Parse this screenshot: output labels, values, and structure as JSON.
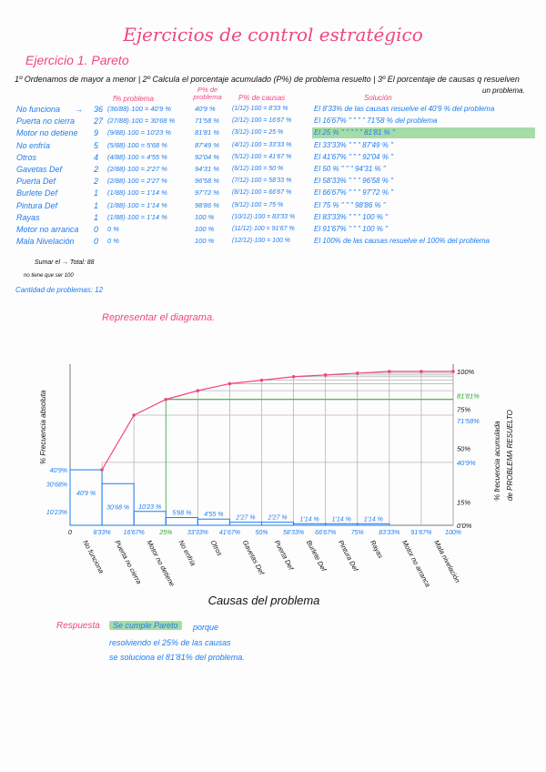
{
  "title": "Ejercicios de control estratégico",
  "exercise_title": "Ejercicio 1. Pareto",
  "instructions": "1º Ordenamos de mayor a menor | 2º Calcula el porcentaje acumulado (P%) de problema resuelto | 3º El porcentaje de causas q resuelven",
  "instructions_2": "un problema.",
  "headers": {
    "pct_problem": "f% problema",
    "cum_problem": "P% de problema",
    "pct_causes": "P% de causas",
    "solution": "Solución"
  },
  "rows": [
    {
      "name": "No funciona",
      "arrow": "→",
      "count": "36",
      "pct": "(36/88)·100 = 40'9 %",
      "cum": "40'9 %",
      "causes": "(1/12)·100 = 8'33 %",
      "solution": "El 8'33% de las causas resuelve el 40'9 % del problema"
    },
    {
      "name": "Puerta no cierra",
      "arrow": "",
      "count": "27",
      "pct": "(27/88)·100 = 30'68 %",
      "cum": "71'58 %",
      "causes": "(2/12)·100 = 16'67 %",
      "solution": "El 16'67%  \"   \"    \"    \"    71'58 % del problema"
    },
    {
      "name": "Motor no detiene",
      "arrow": "",
      "count": "9",
      "pct": "(9/88)·100 = 10'23 %",
      "cum": "81'81 %",
      "causes": "(3/12)·100 = 25 %",
      "solution": "El 25 %   \"  \"   \"    \"    \"    81'81 %     \""
    },
    {
      "name": "No enfría",
      "arrow": "",
      "count": "5",
      "pct": "(5/88)·100 = 5'68 %",
      "cum": "87'49 %",
      "causes": "(4/12)·100 = 33'33 %",
      "solution": "El 33'33%  \"       \"      \"    87'49 %     \""
    },
    {
      "name": "Otros",
      "arrow": "",
      "count": "4",
      "pct": "(4/88)·100 = 4'55 %",
      "cum": "92'04 %",
      "causes": "(5/12)·100 = 41'67 %",
      "solution": "El 41'67%  \"       \"      \"    92'04 %     \""
    },
    {
      "name": "Gavetas Def",
      "arrow": "",
      "count": "2",
      "pct": "(2/88)·100 = 2'27 %",
      "cum": "94'31 %",
      "causes": "(6/12)·100 = 50 %",
      "solution": "El 50 %     \"       \"      \"    94'31 %     \""
    },
    {
      "name": "Puerta Def",
      "arrow": "",
      "count": "2",
      "pct": "(2/88)·100 = 2'27 %",
      "cum": "96'58 %",
      "causes": "(7/12)·100 = 58'33 %",
      "solution": "El 58'33%   \"      \"      \"    96'58 %     \""
    },
    {
      "name": "Burlete Def",
      "arrow": "",
      "count": "1",
      "pct": "(1/88)·100 = 1'14 %",
      "cum": "97'72 %",
      "causes": "(8/12)·100 = 66'67 %",
      "solution": "El 66'67%   \"      \"      \"    97'72 %     \""
    },
    {
      "name": "Pintura Def",
      "arrow": "",
      "count": "1",
      "pct": "(1/88)·100 = 1'14 %",
      "cum": "98'86 %",
      "causes": "(9/12)·100 = 75 %",
      "solution": "El 75 %      \"      \"      \"    98'86 %     \""
    },
    {
      "name": "Rayas",
      "arrow": "",
      "count": "1",
      "pct": "(1/88)·100 = 1'14 %",
      "cum": "100 %",
      "causes": "(10/12)·100 = 83'33 %",
      "solution": "El 83'33%   \"      \"      \"    100 %      \""
    },
    {
      "name": "Motor no arranca",
      "arrow": "",
      "count": "0",
      "pct": "0 %",
      "cum": "100 %",
      "causes": "(11/12)·100 = 91'67 %",
      "solution": "El 91'67%   \"      \"      \"    100 %      \""
    },
    {
      "name": "Mala Nivelación",
      "arrow": "",
      "count": "0",
      "pct": "0 %",
      "cum": "100 %",
      "causes": "(12/12)·100 = 100 %",
      "solution": "El 100% de las causas resuelve el 100% del problema"
    }
  ],
  "highlight_row": 2,
  "sum_note": "Sumar el → Total: 88",
  "note_100": "no tiene que ser 100",
  "count_problems": "Cantidad de problemas: 12",
  "chart_heading": "Representar el diagrama.",
  "chart_data": {
    "type": "bar",
    "categories": [
      "No funciona",
      "Puerta no cierra",
      "Motor no detiene",
      "No enfría",
      "Otros",
      "Gavetas Def",
      "Puerta Def",
      "Burlete Def",
      "Pintura Def",
      "Rayas",
      "Motor no arranca",
      "Mala nivelación"
    ],
    "values": [
      40.9,
      30.68,
      10.23,
      5.68,
      4.55,
      2.27,
      2.27,
      1.14,
      1.14,
      1.14,
      0,
      0
    ],
    "bar_labels": [
      "40'9 %",
      "30'68 %",
      "10'23 %",
      "5'68 %",
      "4'55 %",
      "2'27 %",
      "2'27 %",
      "1'14 %",
      "1'14 %",
      "1'14 %",
      "",
      ""
    ],
    "cumulative": [
      40.9,
      71.58,
      81.81,
      87.49,
      92.04,
      94.31,
      96.58,
      97.72,
      98.86,
      100,
      100,
      100
    ],
    "x_ticks": [
      "0",
      "8'33%",
      "16'67%",
      "25%",
      "33'33%",
      "41'67%",
      "50%",
      "58'33%",
      "66'67%",
      "75%",
      "83'33%",
      "91'67%",
      "100%"
    ],
    "left_ticks": [
      "40'9%",
      "30'68%",
      "10'23%"
    ],
    "right_ticks": [
      "100%",
      "81'81%",
      "75%",
      "71'58%",
      "50%",
      "40'9%",
      "15%",
      "0'0%"
    ],
    "right_tick_values": [
      100,
      81.81,
      75,
      71.58,
      50,
      40.9,
      15,
      0
    ],
    "xlabel": "Causas del problema",
    "ylabel_left": "% Frecuencia absoluta",
    "ylabel_right": "% frecuencia acumulada",
    "ylabel_right_2": "de PROBLEMA RESUELTO",
    "ylim": [
      0,
      100
    ],
    "colors": {
      "bars": "#1e7cf0",
      "line": "#f0467f",
      "highlight": "#2aa52a",
      "grid": "#b5b5b5"
    }
  },
  "answer": {
    "label": "Respuesta",
    "highlight": "Se cumple Pareto",
    "line1": "porque",
    "line2": "resolviendo el 25% de las causas",
    "line3": "se soluciona el 81'81% del problema."
  }
}
